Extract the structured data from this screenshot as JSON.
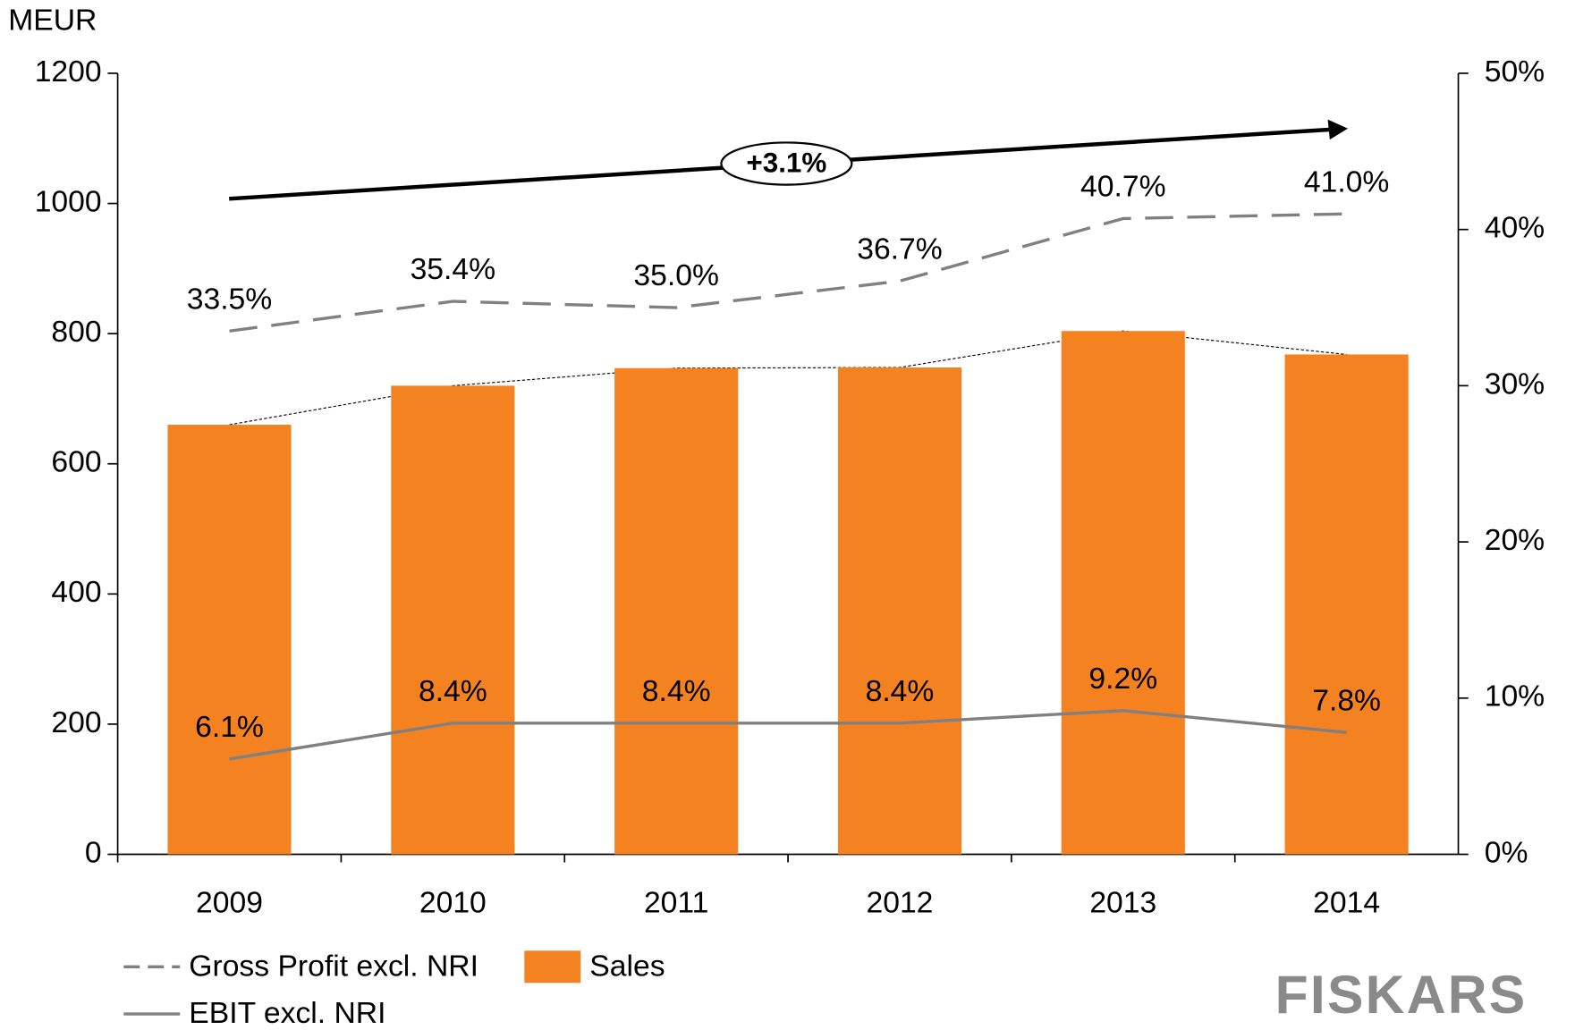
{
  "chart_data": {
    "type": "bar",
    "y_label": "MEUR",
    "categories": [
      "2009",
      "2010",
      "2011",
      "2012",
      "2013",
      "2014"
    ],
    "series": [
      {
        "name": "Sales",
        "type": "bar",
        "color": "#f58220",
        "values": [
          660,
          720,
          747,
          748,
          804,
          768
        ]
      },
      {
        "name": "Gross Profit excl. NRI",
        "type": "line",
        "dashed": true,
        "axis": "y2",
        "color": "#808080",
        "values": [
          33.5,
          35.4,
          35.0,
          36.7,
          40.7,
          41.0
        ],
        "value_labels": [
          "33.5%",
          "35.4%",
          "35.0%",
          "36.7%",
          "40.7%",
          "41.0%"
        ]
      },
      {
        "name": "EBIT excl. NRI",
        "type": "line",
        "axis": "y2",
        "color": "#808080",
        "values": [
          6.1,
          8.4,
          8.4,
          8.4,
          9.2,
          7.8
        ],
        "value_labels": [
          "6.1%",
          "8.4%",
          "8.4%",
          "8.4%",
          "9.2%",
          "7.8%"
        ]
      }
    ],
    "ylim": [
      0,
      1200
    ],
    "yticks": [
      0,
      200,
      400,
      600,
      800,
      1000,
      1200
    ],
    "y2lim": [
      0,
      50
    ],
    "y2ticks": [
      {
        "value": 0,
        "label": "0%"
      },
      {
        "value": 10,
        "label": "10%"
      },
      {
        "value": 20,
        "label": "20%"
      },
      {
        "value": 30,
        "label": "30%"
      },
      {
        "value": 40,
        "label": "40%"
      },
      {
        "value": 50,
        "label": "50%"
      }
    ],
    "annotation": "+3.1%",
    "logo": "FISKARS"
  }
}
